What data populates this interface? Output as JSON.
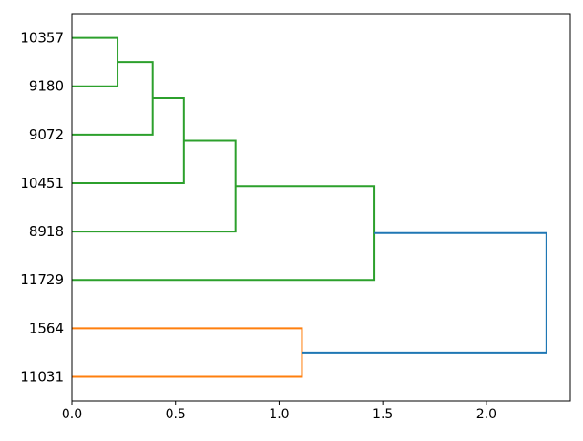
{
  "figure": {
    "background": "#ffffff"
  },
  "chart_data": {
    "type": "dendrogram",
    "orientation": "right",
    "title": "",
    "xlabel": "",
    "ylabel": "",
    "leaves": [
      "10357",
      "9180",
      "9072",
      "10451",
      "8918",
      "11729",
      "1564",
      "11031"
    ],
    "merges": [
      {
        "children": [
          0,
          1
        ],
        "height": 0.22,
        "color": "green"
      },
      {
        "children": [
          8,
          2
        ],
        "height": 0.39,
        "color": "green"
      },
      {
        "children": [
          9,
          3
        ],
        "height": 0.54,
        "color": "green"
      },
      {
        "children": [
          10,
          4
        ],
        "height": 0.79,
        "color": "green"
      },
      {
        "children": [
          11,
          5
        ],
        "height": 1.46,
        "color": "green"
      },
      {
        "children": [
          6,
          7
        ],
        "height": 1.11,
        "color": "orange"
      },
      {
        "children": [
          12,
          13
        ],
        "height": 2.29,
        "color": "blue"
      }
    ],
    "x_ticks": [
      0.0,
      0.5,
      1.0,
      1.5,
      2.0
    ],
    "x_tick_labels": [
      "0.0",
      "0.5",
      "1.0",
      "1.5",
      "2.0"
    ],
    "xlim": [
      0,
      2.405
    ],
    "grid": false,
    "legend": null,
    "palette": {
      "green": "#2ca02c",
      "orange": "#ff7f0e",
      "blue": "#1f77b4"
    },
    "axis_color": "#000000"
  }
}
